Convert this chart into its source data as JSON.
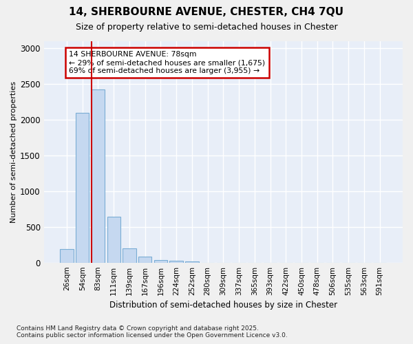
{
  "title_line1": "14, SHERBOURNE AVENUE, CHESTER, CH4 7QU",
  "title_line2": "Size of property relative to semi-detached houses in Chester",
  "xlabel": "Distribution of semi-detached houses by size in Chester",
  "ylabel": "Number of semi-detached properties",
  "categories": [
    "26sqm",
    "54sqm",
    "83sqm",
    "111sqm",
    "139sqm",
    "167sqm",
    "196sqm",
    "224sqm",
    "252sqm",
    "280sqm",
    "309sqm",
    "337sqm",
    "365sqm",
    "393sqm",
    "422sqm",
    "450sqm",
    "478sqm",
    "506sqm",
    "535sqm",
    "563sqm",
    "591sqm"
  ],
  "values": [
    185,
    2100,
    2430,
    645,
    200,
    85,
    40,
    25,
    20,
    0,
    0,
    0,
    0,
    0,
    0,
    0,
    0,
    0,
    0,
    0,
    0
  ],
  "bar_color": "#c5d8f0",
  "bar_edgecolor": "#7aadd4",
  "vline_color": "#cc0000",
  "vline_xindex": 2,
  "annotation_line1": "14 SHERBOURNE AVENUE: 78sqm",
  "annotation_line2": "← 29% of semi-detached houses are smaller (1,675)",
  "annotation_line3": "69% of semi-detached houses are larger (3,955) →",
  "annotation_box_edgecolor": "#cc0000",
  "ylim": [
    0,
    3100
  ],
  "yticks": [
    0,
    500,
    1000,
    1500,
    2000,
    2500,
    3000
  ],
  "background_color": "#e8eef8",
  "grid_color": "#ffffff",
  "fig_background": "#f0f0f0",
  "footer_line1": "Contains HM Land Registry data © Crown copyright and database right 2025.",
  "footer_line2": "Contains public sector information licensed under the Open Government Licence v3.0."
}
